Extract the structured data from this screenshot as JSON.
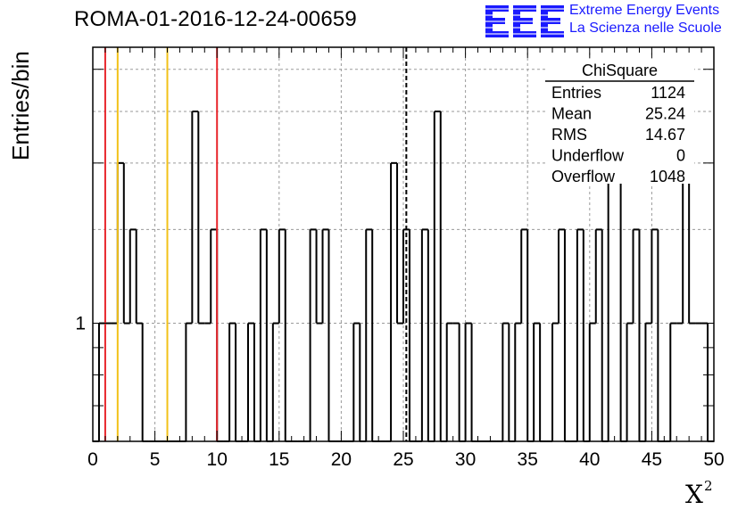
{
  "run_title": "ROMA-01-2016-12-24-00659",
  "logo": {
    "mark": "EEE",
    "line1": "Extreme Energy Events",
    "line2": "La Scienza nelle Scuole",
    "color": "#1a1aff"
  },
  "chart_data": {
    "type": "histogram",
    "title": "ChiSquare",
    "xlabel_base": "X",
    "xlabel_power": "2",
    "ylabel": "Entries/bin",
    "log_y": true,
    "xlim": [
      0,
      50
    ],
    "ylim": [
      0.6,
      3.3
    ],
    "bin_width": 0.5,
    "grid": true,
    "x_ticks": [
      0,
      5,
      10,
      15,
      20,
      25,
      30,
      35,
      40,
      45,
      50
    ],
    "y_tick_labels": [
      {
        "value": 1,
        "label": "1"
      }
    ],
    "bins": [
      {
        "x": 0.5,
        "y": 1
      },
      {
        "x": 1.0,
        "y": 1
      },
      {
        "x": 1.5,
        "y": 1
      },
      {
        "x": 2.0,
        "y": 2
      },
      {
        "x": 2.5,
        "y": 1
      },
      {
        "x": 3.0,
        "y": 1.5
      },
      {
        "x": 3.5,
        "y": 1
      },
      {
        "x": 7.5,
        "y": 1
      },
      {
        "x": 8.0,
        "y": 2.5
      },
      {
        "x": 8.5,
        "y": 1
      },
      {
        "x": 9.0,
        "y": 1
      },
      {
        "x": 9.5,
        "y": 1.5
      },
      {
        "x": 11.0,
        "y": 1
      },
      {
        "x": 12.5,
        "y": 1
      },
      {
        "x": 13.5,
        "y": 1.5
      },
      {
        "x": 14.5,
        "y": 1
      },
      {
        "x": 15.0,
        "y": 1.5
      },
      {
        "x": 17.5,
        "y": 1.5
      },
      {
        "x": 18.0,
        "y": 1
      },
      {
        "x": 18.5,
        "y": 1.5
      },
      {
        "x": 21.0,
        "y": 1
      },
      {
        "x": 22.0,
        "y": 1.5
      },
      {
        "x": 24.0,
        "y": 2
      },
      {
        "x": 24.5,
        "y": 1
      },
      {
        "x": 25.0,
        "y": 1.5
      },
      {
        "x": 26.5,
        "y": 1.5
      },
      {
        "x": 27.5,
        "y": 2.5
      },
      {
        "x": 28.5,
        "y": 1
      },
      {
        "x": 29.0,
        "y": 1
      },
      {
        "x": 30.0,
        "y": 1
      },
      {
        "x": 33.0,
        "y": 1
      },
      {
        "x": 34.0,
        "y": 1
      },
      {
        "x": 34.5,
        "y": 1.5
      },
      {
        "x": 35.5,
        "y": 1
      },
      {
        "x": 37.0,
        "y": 1
      },
      {
        "x": 37.5,
        "y": 1.5
      },
      {
        "x": 39.0,
        "y": 1.5
      },
      {
        "x": 40.0,
        "y": 1
      },
      {
        "x": 40.5,
        "y": 1.5
      },
      {
        "x": 41.5,
        "y": 2
      },
      {
        "x": 42.0,
        "y": 2.5
      },
      {
        "x": 43.0,
        "y": 1
      },
      {
        "x": 43.5,
        "y": 1.5
      },
      {
        "x": 44.5,
        "y": 1
      },
      {
        "x": 45.0,
        "y": 1.5
      },
      {
        "x": 46.5,
        "y": 1
      },
      {
        "x": 47.0,
        "y": 1
      },
      {
        "x": 47.5,
        "y": 2
      },
      {
        "x": 48.0,
        "y": 1
      },
      {
        "x": 48.5,
        "y": 1
      },
      {
        "x": 49.0,
        "y": 1
      }
    ],
    "vertical_lines": [
      {
        "x": 1,
        "color": "#e8262c",
        "style": "solid"
      },
      {
        "x": 2,
        "color": "#f2c118",
        "style": "solid"
      },
      {
        "x": 6,
        "color": "#f2c118",
        "style": "solid"
      },
      {
        "x": 10,
        "color": "#e8262c",
        "style": "solid"
      },
      {
        "x": 25.24,
        "color": "#000000",
        "style": "dashed"
      }
    ],
    "stats_box": {
      "title": "ChiSquare",
      "rows": [
        {
          "label": "Entries",
          "value": "1124"
        },
        {
          "label": "Mean",
          "value": "25.24"
        },
        {
          "label": "RMS",
          "value": "14.67"
        },
        {
          "label": "Underflow",
          "value": "0"
        },
        {
          "label": "Overflow",
          "value": "1048"
        }
      ]
    }
  }
}
